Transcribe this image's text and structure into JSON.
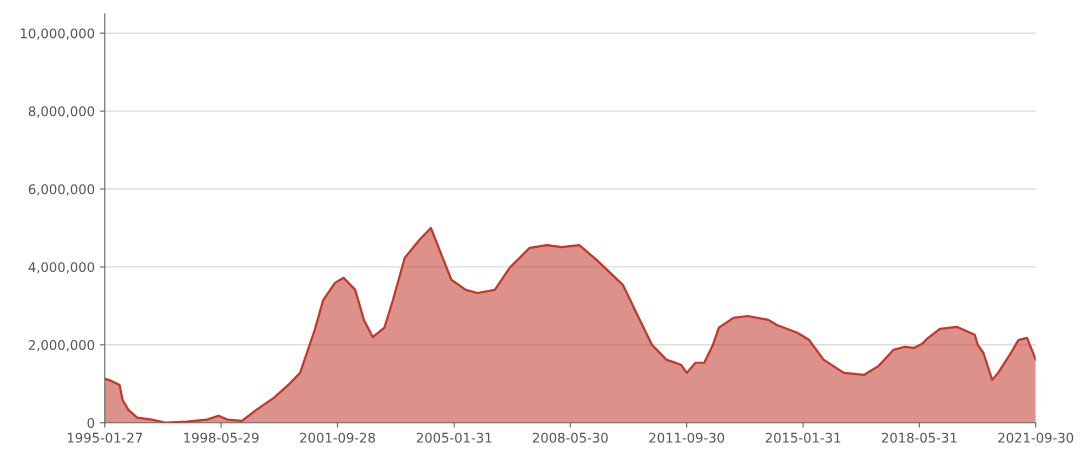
{
  "chart_data": {
    "type": "area",
    "x": [
      "1995-01-27",
      "1995-04",
      "1995-07",
      "1995-08",
      "1995-10",
      "1996-01",
      "1996-06",
      "1996-11",
      "1997-06",
      "1998-01",
      "1998-05",
      "1998-08",
      "1999-01",
      "1999-06",
      "1999-12",
      "2000-05",
      "2000-09",
      "2001-02",
      "2001-05",
      "2001-09",
      "2001-12",
      "2002-04",
      "2002-07",
      "2002-10",
      "2003-02",
      "2003-05",
      "2003-09",
      "2004-02",
      "2004-06",
      "2004-08",
      "2005-01",
      "2005-06",
      "2005-10",
      "2006-04",
      "2006-09",
      "2007-04",
      "2007-10",
      "2008-03",
      "2008-09",
      "2009-03",
      "2009-12",
      "2010-05",
      "2010-10",
      "2011-03",
      "2011-08",
      "2011-10",
      "2012-01",
      "2012-04",
      "2012-07",
      "2012-09",
      "2013-02",
      "2013-07",
      "2014-02",
      "2014-05",
      "2014-12",
      "2015-04",
      "2015-09",
      "2016-04",
      "2016-11",
      "2017-04",
      "2017-09",
      "2018-01",
      "2018-04",
      "2018-07",
      "2018-09",
      "2019-01",
      "2019-07",
      "2020-01",
      "2020-02",
      "2020-04",
      "2020-07",
      "2020-09",
      "2021-01",
      "2021-04",
      "2021-07",
      "2021-09-30"
    ],
    "series": [
      {
        "color": "#c0392b",
        "values": [
          1130000,
          1080000,
          970000,
          590000,
          330000,
          130000,
          80000,
          0,
          30000,
          80000,
          180000,
          80000,
          50000,
          330000,
          640000,
          970000,
          1280000,
          2380000,
          3150000,
          3590000,
          3720000,
          3410000,
          2640000,
          2200000,
          2440000,
          3150000,
          4230000,
          4690000,
          5000000,
          4620000,
          3670000,
          3410000,
          3330000,
          3410000,
          3970000,
          4490000,
          4560000,
          4510000,
          4560000,
          4180000,
          3540000,
          2770000,
          2000000,
          1620000,
          1490000,
          1280000,
          1540000,
          1540000,
          2000000,
          2440000,
          2690000,
          2740000,
          2640000,
          2510000,
          2310000,
          2130000,
          1620000,
          1280000,
          1230000,
          1460000,
          1870000,
          1950000,
          1920000,
          2030000,
          2180000,
          2410000,
          2460000,
          2260000,
          2000000,
          1790000,
          1100000,
          1280000,
          1740000,
          2120000,
          2180000,
          1620000
        ]
      }
    ],
    "xlim": [
      "1995-01-27",
      "2021-09-30"
    ],
    "xticks": [
      "1995-01-27",
      "1998-05-29",
      "2001-09-28",
      "2005-01-31",
      "2008-05-30",
      "2011-09-30",
      "2015-01-31",
      "2018-05-31",
      "2021-09-30"
    ],
    "ylim": [
      0,
      10500000
    ],
    "yticks": [
      0,
      {
        "value": 2000000,
        "label": "2,000,000"
      },
      {
        "value": 4000000,
        "label": "4,000,000"
      },
      {
        "value": 6000000,
        "label": "6,000,000"
      },
      {
        "value": 8000000,
        "label": "8,000,000"
      },
      {
        "value": 10000000,
        "label": "10,000,000"
      }
    ],
    "grid": "y"
  }
}
